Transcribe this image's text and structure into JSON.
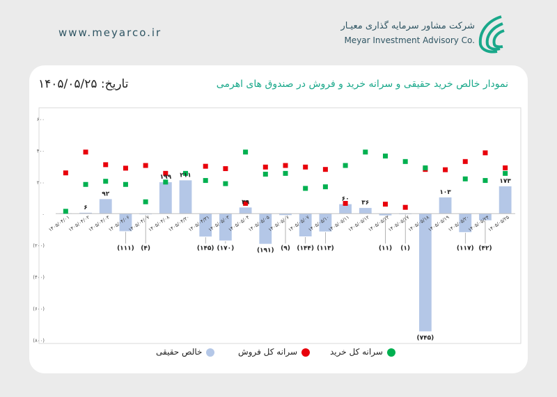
{
  "header": {
    "website": "www.meyarco.ir",
    "company_fa": "شرکت مشاور سرمایه گذاری معیـار",
    "company_en": "Meyar Investment Advisory Co."
  },
  "colors": {
    "net_bar": "#b4c7e7",
    "sell_marker": "#e8000b",
    "buy_marker": "#00b050",
    "title": "#19a88a"
  },
  "chart_data": {
    "type": "bar",
    "title": "نمودار خالص خرید حقیقی و سرانه خرید و فروش در صندوق های اهرمی",
    "date_label": "تاریخ: ۱۴۰۵/۰۵/۲۵",
    "ylim": [
      -800,
      600
    ],
    "yticks": [
      "۶۰۰",
      "۴۰۰",
      "۲۰۰",
      "۰",
      "(۲۰۰)",
      "(۴۰۰)",
      "(۶۰۰)",
      "(۸۰۰)"
    ],
    "ytick_values": [
      600,
      400,
      200,
      0,
      -200,
      -400,
      -600,
      -800
    ],
    "categories": [
      "۱۴۰۵/۰۴/۰۱",
      "۱۴۰۵/۰۴/۰۲",
      "۱۴۰۵/۰۴/۰۳",
      "۱۴۰۵/۰۴/۰۶",
      "۱۴۰۵/۰۴/۰۷",
      "۱۴۰۵/۰۴/۰۸",
      "۱۴۰۵/۰۴/۳۰",
      "۱۴۰۵/۰۴/۳۱",
      "۱۴۰۵/۰۵/۰۳",
      "۱۴۰۵/۰۵/۰۴",
      "۱۴۰۵/۰۵/۰۵",
      "۱۴۰۵/۰۵/۰۶",
      "۱۴۰۵/۰۵/۰۷",
      "۱۴۰۵/۰۵/۱۰",
      "۱۴۰۵/۰۵/۱۱",
      "۱۴۰۵/۰۵/۱۲",
      "۱۴۰۵/۰۵/۱۳",
      "۱۴۰۵/۰۵/۱۷",
      "۱۴۰۵/۰۵/۱۸",
      "۱۴۰۵/۰۵/۱۹",
      "۱۴۰۵/۰۵/۲۰",
      "۱۴۰۵/۰۵/۲۴",
      "۱۴۰۵/۰۵/۲۵"
    ],
    "series": [
      {
        "name": "خالص حقیقی",
        "kind": "bar",
        "values": [
          2,
          6,
          92,
          -111,
          -4,
          199,
          211,
          -145,
          -170,
          39,
          -191,
          -9,
          -144,
          -113,
          60,
          36,
          -11,
          -1,
          -745,
          103,
          -117,
          -42,
          173
        ],
        "data_labels": [
          "",
          "۶",
          "۹۲",
          "(۱۱۱)",
          "(۴)",
          "۱۹۹",
          "۲۱۱",
          "(۱۴۵)",
          "(۱۷۰)",
          "۳۹",
          "(۱۹۱)",
          "(۹)",
          "(۱۴۴)",
          "(۱۱۳)",
          "۶۰",
          "۳۶",
          "(۱۱)",
          "(۱)",
          "(۷۴۵)",
          "۱۰۳",
          "(۱۱۷)",
          "(۴۲)",
          "۱۷۳"
        ]
      },
      {
        "name": "سرانه کل فروش",
        "kind": "marker",
        "values": [
          258,
          390,
          310,
          288,
          305,
          255,
          null,
          300,
          285,
          65,
          295,
          305,
          295,
          280,
          65,
          null,
          60,
          40,
          280,
          278,
          330,
          385,
          290
        ]
      },
      {
        "name": "سرانه کل خرید",
        "kind": "marker",
        "values": [
          15,
          185,
          205,
          185,
          75,
          200,
          255,
          210,
          190,
          390,
          250,
          255,
          160,
          170,
          305,
          390,
          365,
          330,
          290,
          null,
          220,
          210,
          255
        ]
      }
    ],
    "legend": [
      {
        "label": "سرانه کل خرید",
        "color": "#00b050"
      },
      {
        "label": "سرانه کل فروش",
        "color": "#e8000b"
      },
      {
        "label": "خالص حقیقی",
        "color": "#b4c7e7"
      }
    ],
    "grid": false
  }
}
